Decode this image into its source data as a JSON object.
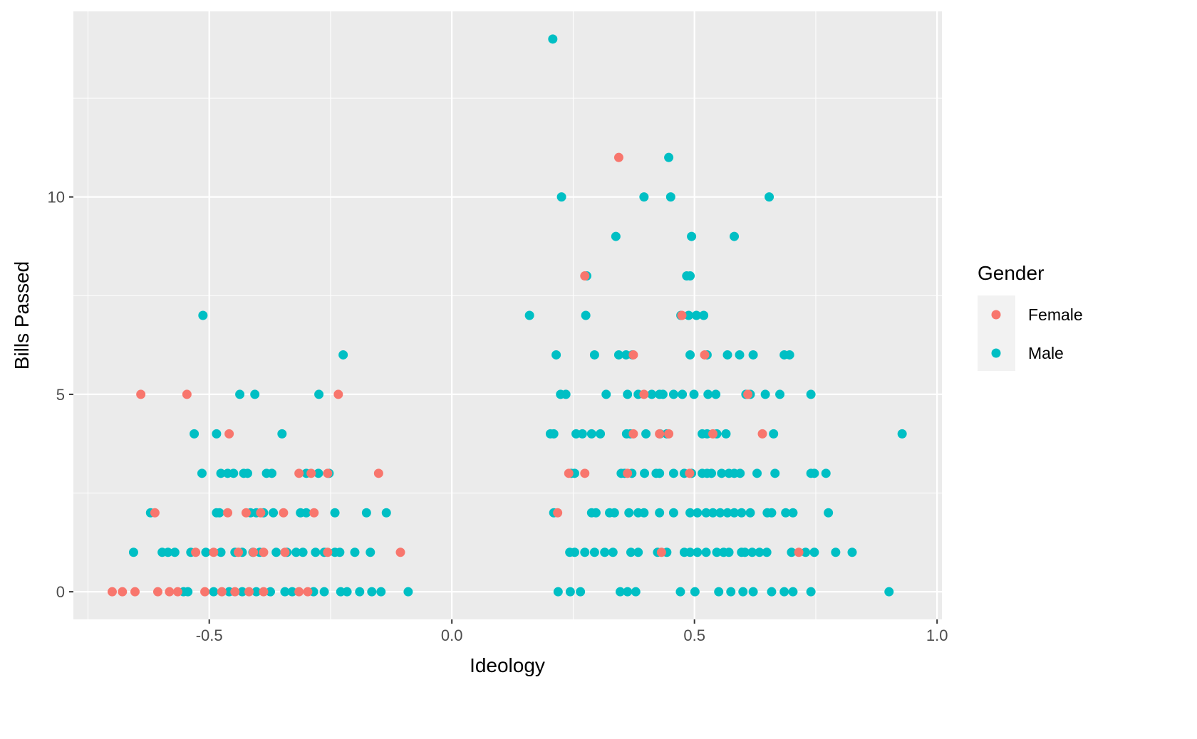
{
  "chart_data": {
    "type": "scatter",
    "title": "",
    "xlabel": "Ideology",
    "ylabel": "Bills Passed",
    "xlim": [
      -0.78,
      1.01
    ],
    "ylim": [
      -0.7,
      14.7
    ],
    "x_ticks": [
      -0.5,
      0.0,
      0.5,
      1.0
    ],
    "x_tick_labels": [
      "-0.5",
      "0.0",
      "0.5",
      "1.0"
    ],
    "y_ticks": [
      0,
      5,
      10
    ],
    "y_tick_labels": [
      "0",
      "5",
      "10"
    ],
    "grid": true,
    "legend": {
      "title": "Gender",
      "placement": "right"
    },
    "series": [
      {
        "name": "Male",
        "color": "#00BFC4",
        "points": [
          [
            0.208,
            14
          ],
          [
            0.447,
            11
          ],
          [
            0.226,
            10
          ],
          [
            0.396,
            10
          ],
          [
            0.451,
            10
          ],
          [
            0.654,
            10
          ],
          [
            0.338,
            9
          ],
          [
            0.494,
            9
          ],
          [
            0.582,
            9
          ],
          [
            0.278,
            8
          ],
          [
            0.484,
            8
          ],
          [
            0.491,
            8
          ],
          [
            -0.513,
            7
          ],
          [
            0.16,
            7
          ],
          [
            0.276,
            7
          ],
          [
            0.472,
            7
          ],
          [
            0.488,
            7
          ],
          [
            0.504,
            7
          ],
          [
            0.519,
            7
          ],
          [
            -0.224,
            6
          ],
          [
            0.215,
            6
          ],
          [
            0.294,
            6
          ],
          [
            0.344,
            6
          ],
          [
            0.359,
            6
          ],
          [
            0.372,
            6
          ],
          [
            0.491,
            6
          ],
          [
            0.526,
            6
          ],
          [
            0.568,
            6
          ],
          [
            0.593,
            6
          ],
          [
            0.621,
            6
          ],
          [
            0.685,
            6
          ],
          [
            0.696,
            6
          ],
          [
            -0.437,
            5
          ],
          [
            -0.406,
            5
          ],
          [
            -0.274,
            5
          ],
          [
            0.224,
            5
          ],
          [
            0.235,
            5
          ],
          [
            0.318,
            5
          ],
          [
            0.362,
            5
          ],
          [
            0.384,
            5
          ],
          [
            0.412,
            5
          ],
          [
            0.428,
            5
          ],
          [
            0.435,
            5
          ],
          [
            0.457,
            5
          ],
          [
            0.475,
            5
          ],
          [
            0.499,
            5
          ],
          [
            0.528,
            5
          ],
          [
            0.544,
            5
          ],
          [
            0.606,
            5
          ],
          [
            0.615,
            5
          ],
          [
            0.646,
            5
          ],
          [
            0.676,
            5
          ],
          [
            0.74,
            5
          ],
          [
            -0.531,
            4
          ],
          [
            -0.485,
            4
          ],
          [
            -0.35,
            4
          ],
          [
            0.203,
            4
          ],
          [
            0.21,
            4
          ],
          [
            0.256,
            4
          ],
          [
            0.269,
            4
          ],
          [
            0.288,
            4
          ],
          [
            0.306,
            4
          ],
          [
            0.36,
            4
          ],
          [
            0.368,
            4
          ],
          [
            0.4,
            4
          ],
          [
            0.429,
            4
          ],
          [
            0.443,
            4
          ],
          [
            0.516,
            4
          ],
          [
            0.526,
            4
          ],
          [
            0.546,
            4
          ],
          [
            0.565,
            4
          ],
          [
            0.663,
            4
          ],
          [
            0.928,
            4
          ],
          [
            -0.515,
            3
          ],
          [
            -0.476,
            3
          ],
          [
            -0.462,
            3
          ],
          [
            -0.45,
            3
          ],
          [
            -0.429,
            3
          ],
          [
            -0.421,
            3
          ],
          [
            -0.382,
            3
          ],
          [
            -0.371,
            3
          ],
          [
            -0.3,
            3
          ],
          [
            -0.275,
            3
          ],
          [
            -0.253,
            3
          ],
          [
            0.246,
            3
          ],
          [
            0.253,
            3
          ],
          [
            0.349,
            3
          ],
          [
            0.356,
            3
          ],
          [
            0.371,
            3
          ],
          [
            0.397,
            3
          ],
          [
            0.421,
            3
          ],
          [
            0.428,
            3
          ],
          [
            0.457,
            3
          ],
          [
            0.479,
            3
          ],
          [
            0.494,
            3
          ],
          [
            0.516,
            3
          ],
          [
            0.526,
            3
          ],
          [
            0.535,
            3
          ],
          [
            0.556,
            3
          ],
          [
            0.571,
            3
          ],
          [
            0.582,
            3
          ],
          [
            0.594,
            3
          ],
          [
            0.629,
            3
          ],
          [
            0.666,
            3
          ],
          [
            0.74,
            3
          ],
          [
            0.747,
            3
          ],
          [
            0.771,
            3
          ],
          [
            -0.621,
            2
          ],
          [
            -0.485,
            2
          ],
          [
            -0.479,
            2
          ],
          [
            -0.415,
            2
          ],
          [
            -0.403,
            2
          ],
          [
            -0.388,
            2
          ],
          [
            -0.368,
            2
          ],
          [
            -0.312,
            2
          ],
          [
            -0.3,
            2
          ],
          [
            -0.241,
            2
          ],
          [
            -0.176,
            2
          ],
          [
            -0.135,
            2
          ],
          [
            0.21,
            2
          ],
          [
            0.288,
            2
          ],
          [
            0.297,
            2
          ],
          [
            0.325,
            2
          ],
          [
            0.335,
            2
          ],
          [
            0.365,
            2
          ],
          [
            0.384,
            2
          ],
          [
            0.396,
            2
          ],
          [
            0.428,
            2
          ],
          [
            0.457,
            2
          ],
          [
            0.491,
            2
          ],
          [
            0.506,
            2
          ],
          [
            0.524,
            2
          ],
          [
            0.538,
            2
          ],
          [
            0.553,
            2
          ],
          [
            0.568,
            2
          ],
          [
            0.582,
            2
          ],
          [
            0.597,
            2
          ],
          [
            0.615,
            2
          ],
          [
            0.65,
            2
          ],
          [
            0.659,
            2
          ],
          [
            0.688,
            2
          ],
          [
            0.703,
            2
          ],
          [
            0.776,
            2
          ],
          [
            -0.656,
            1
          ],
          [
            -0.597,
            1
          ],
          [
            -0.585,
            1
          ],
          [
            -0.571,
            1
          ],
          [
            -0.538,
            1
          ],
          [
            -0.507,
            1
          ],
          [
            -0.476,
            1
          ],
          [
            -0.447,
            1
          ],
          [
            -0.432,
            1
          ],
          [
            -0.41,
            1
          ],
          [
            -0.396,
            1
          ],
          [
            -0.362,
            1
          ],
          [
            -0.34,
            1
          ],
          [
            -0.321,
            1
          ],
          [
            -0.307,
            1
          ],
          [
            -0.281,
            1
          ],
          [
            -0.263,
            1
          ],
          [
            -0.241,
            1
          ],
          [
            -0.231,
            1
          ],
          [
            -0.2,
            1
          ],
          [
            -0.168,
            1
          ],
          [
            0.243,
            1
          ],
          [
            0.253,
            1
          ],
          [
            0.274,
            1
          ],
          [
            0.294,
            1
          ],
          [
            0.315,
            1
          ],
          [
            0.332,
            1
          ],
          [
            0.369,
            1
          ],
          [
            0.384,
            1
          ],
          [
            0.424,
            1
          ],
          [
            0.443,
            1
          ],
          [
            0.479,
            1
          ],
          [
            0.491,
            1
          ],
          [
            0.506,
            1
          ],
          [
            0.524,
            1
          ],
          [
            0.546,
            1
          ],
          [
            0.56,
            1
          ],
          [
            0.571,
            1
          ],
          [
            0.597,
            1
          ],
          [
            0.604,
            1
          ],
          [
            0.619,
            1
          ],
          [
            0.634,
            1
          ],
          [
            0.649,
            1
          ],
          [
            0.7,
            1
          ],
          [
            0.729,
            1
          ],
          [
            0.747,
            1
          ],
          [
            0.791,
            1
          ],
          [
            0.825,
            1
          ],
          [
            -0.553,
            0
          ],
          [
            -0.544,
            0
          ],
          [
            -0.491,
            0
          ],
          [
            -0.459,
            0
          ],
          [
            -0.432,
            0
          ],
          [
            -0.403,
            0
          ],
          [
            -0.374,
            0
          ],
          [
            -0.344,
            0
          ],
          [
            -0.329,
            0
          ],
          [
            -0.285,
            0
          ],
          [
            -0.263,
            0
          ],
          [
            -0.229,
            0
          ],
          [
            -0.216,
            0
          ],
          [
            -0.19,
            0
          ],
          [
            -0.165,
            0
          ],
          [
            -0.146,
            0
          ],
          [
            -0.09,
            0
          ],
          [
            0.219,
            0
          ],
          [
            0.244,
            0
          ],
          [
            0.265,
            0
          ],
          [
            0.347,
            0
          ],
          [
            0.362,
            0
          ],
          [
            0.379,
            0
          ],
          [
            0.471,
            0
          ],
          [
            0.501,
            0
          ],
          [
            0.55,
            0
          ],
          [
            0.575,
            0
          ],
          [
            0.6,
            0
          ],
          [
            0.621,
            0
          ],
          [
            0.659,
            0
          ],
          [
            0.685,
            0
          ],
          [
            0.703,
            0
          ],
          [
            0.74,
            0
          ],
          [
            0.901,
            0
          ]
        ]
      },
      {
        "name": "Female",
        "color": "#F8766D",
        "points": [
          [
            0.344,
            11
          ],
          [
            0.274,
            8
          ],
          [
            0.474,
            7
          ],
          [
            0.374,
            6
          ],
          [
            0.521,
            6
          ],
          [
            -0.641,
            5
          ],
          [
            -0.546,
            5
          ],
          [
            -0.234,
            5
          ],
          [
            0.396,
            5
          ],
          [
            0.61,
            5
          ],
          [
            -0.459,
            4
          ],
          [
            0.374,
            4
          ],
          [
            0.428,
            4
          ],
          [
            0.447,
            4
          ],
          [
            0.538,
            4
          ],
          [
            0.64,
            4
          ],
          [
            -0.315,
            3
          ],
          [
            -0.29,
            3
          ],
          [
            -0.256,
            3
          ],
          [
            -0.151,
            3
          ],
          [
            0.241,
            3
          ],
          [
            0.274,
            3
          ],
          [
            0.362,
            3
          ],
          [
            0.49,
            3
          ],
          [
            -0.612,
            2
          ],
          [
            -0.462,
            2
          ],
          [
            -0.424,
            2
          ],
          [
            -0.394,
            2
          ],
          [
            -0.347,
            2
          ],
          [
            -0.284,
            2
          ],
          [
            0.218,
            2
          ],
          [
            -0.528,
            1
          ],
          [
            -0.491,
            1
          ],
          [
            -0.44,
            1
          ],
          [
            -0.409,
            1
          ],
          [
            -0.388,
            1
          ],
          [
            -0.344,
            1
          ],
          [
            -0.256,
            1
          ],
          [
            -0.106,
            1
          ],
          [
            0.432,
            1
          ],
          [
            0.715,
            1
          ],
          [
            -0.7,
            0
          ],
          [
            -0.679,
            0
          ],
          [
            -0.653,
            0
          ],
          [
            -0.606,
            0
          ],
          [
            -0.582,
            0
          ],
          [
            -0.565,
            0
          ],
          [
            -0.509,
            0
          ],
          [
            -0.474,
            0
          ],
          [
            -0.447,
            0
          ],
          [
            -0.418,
            0
          ],
          [
            -0.388,
            0
          ],
          [
            -0.315,
            0
          ],
          [
            -0.297,
            0
          ]
        ]
      }
    ],
    "panel_background": "#EBEBEB"
  }
}
